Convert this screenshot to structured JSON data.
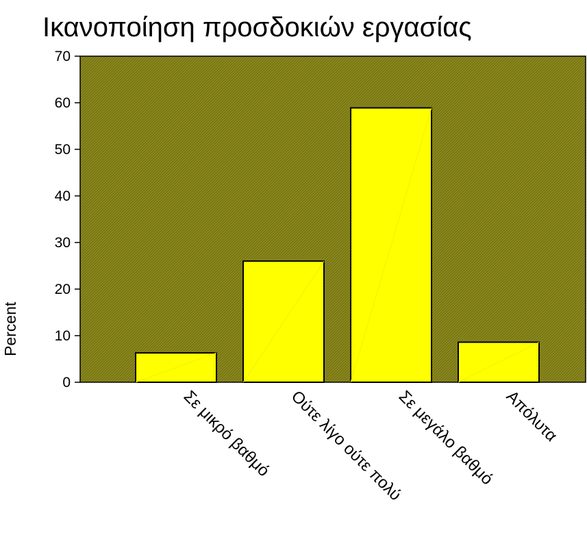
{
  "chart_data": {
    "type": "bar",
    "title": "Ικανοποίηση προσδοκιών εργασίας",
    "xlabel": "",
    "ylabel": "Percent",
    "categories": [
      "Σε μικρό βαθμό",
      "Ούτε λίγο ούτε πολύ",
      "Σε μεγάλο βαθμό",
      "Απόλυτα"
    ],
    "values": [
      6.3,
      26.0,
      58.9,
      8.6
    ],
    "ylim": [
      0,
      70
    ],
    "yticks": [
      0,
      10,
      20,
      30,
      40,
      50,
      60,
      70
    ],
    "grid": false,
    "legend": "none",
    "colors": {
      "plot_background": "#8c8a1c",
      "hatch_line": "#6f6d12",
      "bar_fill": "#ffff00",
      "bar_stroke": "#000000"
    }
  }
}
